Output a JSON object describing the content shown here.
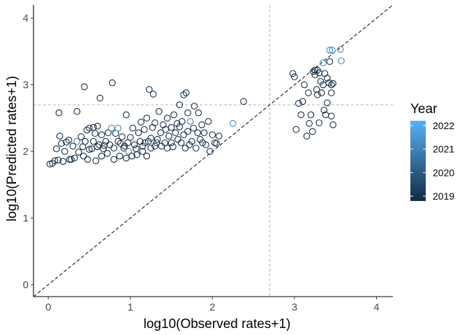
{
  "chart_data": {
    "type": "scatter",
    "xlabel": "log10(Observed rates+1)",
    "ylabel": "log10(Predicted rates+1)",
    "xlim": [
      -0.18,
      4.2
    ],
    "ylim": [
      -0.18,
      4.2
    ],
    "x_ticks": [
      0,
      1,
      2,
      3,
      4
    ],
    "y_ticks": [
      0,
      1,
      2,
      3,
      4
    ],
    "x_tick_labels": [
      "0",
      "1",
      "2",
      "3",
      "4"
    ],
    "y_tick_labels": [
      "0",
      "1",
      "2",
      "3",
      "4"
    ],
    "grid": false,
    "reference_lines": {
      "identity_line": true,
      "vline_x": 2.7,
      "hline_y": 2.7
    },
    "legend": {
      "title": "Year",
      "position": "right",
      "labels": [
        "2022",
        "2021",
        "2020",
        "2019"
      ],
      "values": [
        2022,
        2021,
        2020,
        2019
      ],
      "range": [
        2019,
        2022
      ],
      "color_low": "#132b43",
      "color_high": "#56b1f7"
    },
    "marker": "open-circle",
    "points": [
      [
        0.02,
        1.81,
        2019
      ],
      [
        0.05,
        1.82,
        2019
      ],
      [
        0.08,
        1.86,
        2019
      ],
      [
        0.1,
        2.04,
        2019
      ],
      [
        0.12,
        1.87,
        2019
      ],
      [
        0.13,
        2.58,
        2019
      ],
      [
        0.14,
        2.23,
        2019
      ],
      [
        0.16,
        2.12,
        2019
      ],
      [
        0.18,
        1.85,
        2019
      ],
      [
        0.2,
        2.0,
        2019
      ],
      [
        0.22,
        2.14,
        2019
      ],
      [
        0.25,
        2.17,
        2019
      ],
      [
        0.26,
        1.88,
        2019
      ],
      [
        0.28,
        1.88,
        2019
      ],
      [
        0.3,
        2.08,
        2019
      ],
      [
        0.32,
        1.9,
        2019
      ],
      [
        0.35,
        2.15,
        2021
      ],
      [
        0.35,
        2.6,
        2019
      ],
      [
        0.37,
        1.99,
        2019
      ],
      [
        0.4,
        2.22,
        2019
      ],
      [
        0.42,
        2.07,
        2019
      ],
      [
        0.43,
        1.93,
        2019
      ],
      [
        0.44,
        2.97,
        2019
      ],
      [
        0.45,
        2.15,
        2019
      ],
      [
        0.47,
        2.32,
        2019
      ],
      [
        0.48,
        1.88,
        2019
      ],
      [
        0.5,
        2.03,
        2019
      ],
      [
        0.5,
        2.35,
        2019
      ],
      [
        0.53,
        2.04,
        2019
      ],
      [
        0.55,
        2.36,
        2019
      ],
      [
        0.55,
        2.15,
        2019
      ],
      [
        0.57,
        2.27,
        2019
      ],
      [
        0.58,
        1.86,
        2019
      ],
      [
        0.6,
        2.07,
        2019
      ],
      [
        0.6,
        2.38,
        2019
      ],
      [
        0.62,
        2.1,
        2019
      ],
      [
        0.63,
        2.8,
        2019
      ],
      [
        0.65,
        2.25,
        2019
      ],
      [
        0.65,
        1.93,
        2019
      ],
      [
        0.67,
        2.04,
        2019
      ],
      [
        0.68,
        2.09,
        2019
      ],
      [
        0.7,
        2.15,
        2019
      ],
      [
        0.72,
        1.97,
        2019
      ],
      [
        0.73,
        2.28,
        2019
      ],
      [
        0.75,
        2.1,
        2019
      ],
      [
        0.77,
        2.35,
        2021
      ],
      [
        0.78,
        3.03,
        2019
      ],
      [
        0.8,
        2.05,
        2019
      ],
      [
        0.8,
        1.88,
        2019
      ],
      [
        0.82,
        2.27,
        2019
      ],
      [
        0.85,
        2.35,
        2021
      ],
      [
        0.85,
        2.15,
        2019
      ],
      [
        0.87,
        1.93,
        2019
      ],
      [
        0.88,
        2.12,
        2019
      ],
      [
        0.9,
        2.22,
        2019
      ],
      [
        0.92,
        2.05,
        2019
      ],
      [
        0.93,
        2.08,
        2019
      ],
      [
        0.95,
        2.55,
        2019
      ],
      [
        0.95,
        1.9,
        2019
      ],
      [
        0.97,
        2.13,
        2019
      ],
      [
        0.98,
        2.0,
        2021
      ],
      [
        1.0,
        2.21,
        2019
      ],
      [
        1.02,
        1.93,
        2019
      ],
      [
        1.03,
        2.35,
        2019
      ],
      [
        1.05,
        2.1,
        2019
      ],
      [
        1.07,
        2.04,
        2019
      ],
      [
        1.08,
        1.95,
        2019
      ],
      [
        1.1,
        2.28,
        2019
      ],
      [
        1.12,
        2.15,
        2019
      ],
      [
        1.13,
        2.44,
        2019
      ],
      [
        1.15,
        2.0,
        2019
      ],
      [
        1.15,
        2.08,
        2019
      ],
      [
        1.17,
        2.33,
        2019
      ],
      [
        1.18,
        2.13,
        2019
      ],
      [
        1.2,
        2.5,
        2019
      ],
      [
        1.2,
        1.93,
        2019
      ],
      [
        1.22,
        2.15,
        2019
      ],
      [
        1.23,
        2.93,
        2019
      ],
      [
        1.25,
        2.2,
        2019
      ],
      [
        1.25,
        2.05,
        2019
      ],
      [
        1.27,
        2.36,
        2019
      ],
      [
        1.28,
        2.86,
        2019
      ],
      [
        1.3,
        2.08,
        2019
      ],
      [
        1.3,
        2.43,
        2019
      ],
      [
        1.32,
        2.13,
        2019
      ],
      [
        1.33,
        2.18,
        2019
      ],
      [
        1.35,
        2.6,
        2019
      ],
      [
        1.37,
        2.28,
        2019
      ],
      [
        1.38,
        2.08,
        2019
      ],
      [
        1.4,
        2.4,
        2019
      ],
      [
        1.42,
        2.13,
        2019
      ],
      [
        1.43,
        2.33,
        2019
      ],
      [
        1.45,
        2.5,
        2019
      ],
      [
        1.45,
        2.05,
        2019
      ],
      [
        1.47,
        2.23,
        2019
      ],
      [
        1.5,
        2.13,
        2019
      ],
      [
        1.5,
        2.36,
        2019
      ],
      [
        1.52,
        2.07,
        2019
      ],
      [
        1.53,
        2.55,
        2019
      ],
      [
        1.55,
        2.28,
        2019
      ],
      [
        1.57,
        2.42,
        2019
      ],
      [
        1.58,
        2.18,
        2019
      ],
      [
        1.6,
        2.37,
        2019
      ],
      [
        1.6,
        2.7,
        2019
      ],
      [
        1.62,
        2.13,
        2019
      ],
      [
        1.63,
        2.45,
        2019
      ],
      [
        1.65,
        2.85,
        2019
      ],
      [
        1.65,
        2.25,
        2019
      ],
      [
        1.67,
        2.05,
        2019
      ],
      [
        1.68,
        2.88,
        2019
      ],
      [
        1.7,
        2.58,
        2019
      ],
      [
        1.7,
        2.3,
        2019
      ],
      [
        1.72,
        2.1,
        2019
      ],
      [
        1.73,
        2.45,
        2021
      ],
      [
        1.75,
        2.15,
        2019
      ],
      [
        1.77,
        2.35,
        2019
      ],
      [
        1.78,
        2.68,
        2019
      ],
      [
        1.8,
        2.05,
        2019
      ],
      [
        1.82,
        2.28,
        2019
      ],
      [
        1.83,
        2.58,
        2019
      ],
      [
        1.85,
        2.18,
        2019
      ],
      [
        1.87,
        2.4,
        2019
      ],
      [
        1.88,
        2.13,
        2019
      ],
      [
        1.9,
        2.28,
        2019
      ],
      [
        1.92,
        2.1,
        2019
      ],
      [
        1.95,
        2.45,
        2019
      ],
      [
        1.97,
        2.0,
        2019
      ],
      [
        2.0,
        2.25,
        2019
      ],
      [
        2.03,
        2.13,
        2019
      ],
      [
        2.05,
        2.12,
        2019
      ],
      [
        2.08,
        2.23,
        2019
      ],
      [
        2.25,
        2.42,
        2021
      ],
      [
        2.38,
        2.75,
        2019
      ],
      [
        2.98,
        3.17,
        2019
      ],
      [
        3.0,
        3.12,
        2019
      ],
      [
        3.02,
        2.33,
        2019
      ],
      [
        3.05,
        2.72,
        2019
      ],
      [
        3.08,
        2.55,
        2019
      ],
      [
        3.1,
        2.75,
        2019
      ],
      [
        3.12,
        3.0,
        2019
      ],
      [
        3.15,
        2.23,
        2019
      ],
      [
        3.17,
        2.88,
        2019
      ],
      [
        3.18,
        2.42,
        2019
      ],
      [
        3.2,
        2.55,
        2019
      ],
      [
        3.22,
        2.3,
        2019
      ],
      [
        3.23,
        3.2,
        2019
      ],
      [
        3.25,
        3.22,
        2019
      ],
      [
        3.25,
        3.15,
        2019
      ],
      [
        3.27,
        2.93,
        2019
      ],
      [
        3.28,
        2.85,
        2019
      ],
      [
        3.28,
        3.22,
        2019
      ],
      [
        3.3,
        3.18,
        2019
      ],
      [
        3.3,
        2.43,
        2019
      ],
      [
        3.32,
        3.05,
        2019
      ],
      [
        3.33,
        2.88,
        2019
      ],
      [
        3.35,
        3.33,
        2021
      ],
      [
        3.35,
        3.0,
        2019
      ],
      [
        3.37,
        3.17,
        2019
      ],
      [
        3.38,
        2.55,
        2019
      ],
      [
        3.4,
        2.73,
        2019
      ],
      [
        3.4,
        3.1,
        2019
      ],
      [
        3.42,
        3.03,
        2019
      ],
      [
        3.43,
        3.52,
        2021
      ],
      [
        3.43,
        3.35,
        2019
      ],
      [
        3.45,
        2.88,
        2019
      ],
      [
        3.45,
        3.0,
        2019
      ],
      [
        3.46,
        3.52,
        2021
      ],
      [
        3.47,
        3.02,
        2019
      ],
      [
        3.47,
        2.4,
        2019
      ],
      [
        3.56,
        3.53,
        2021
      ],
      [
        3.57,
        3.36,
        2021
      ],
      [
        3.45,
        2.53,
        2019
      ],
      [
        3.36,
        2.62,
        2019
      ]
    ]
  }
}
